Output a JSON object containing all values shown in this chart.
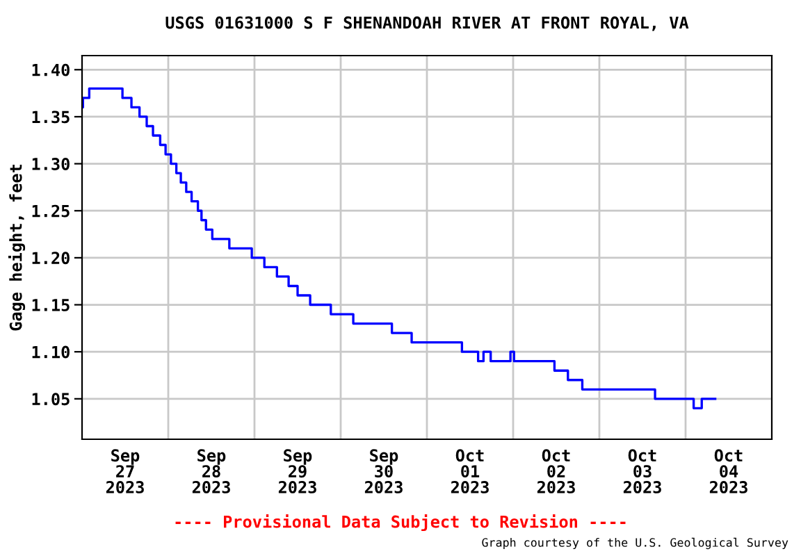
{
  "chart_data": {
    "type": "step",
    "title": "USGS 01631000 S F SHENANDOAH RIVER AT FRONT ROYAL, VA",
    "ylabel": "Gage height, feet",
    "x": [
      "2023-09-27T00:00",
      "2023-09-27T00:15",
      "2023-09-27T02:00",
      "2023-09-27T11:15",
      "2023-09-27T13:45",
      "2023-09-27T16:00",
      "2023-09-27T18:00",
      "2023-09-27T19:45",
      "2023-09-27T21:45",
      "2023-09-27T23:15",
      "2023-09-28T00:45",
      "2023-09-28T02:15",
      "2023-09-28T03:30",
      "2023-09-28T05:00",
      "2023-09-28T06:30",
      "2023-09-28T08:15",
      "2023-09-28T09:15",
      "2023-09-28T10:30",
      "2023-09-28T12:15",
      "2023-09-28T17:00",
      "2023-09-28T23:15",
      "2023-09-29T02:45",
      "2023-09-29T06:15",
      "2023-09-29T09:30",
      "2023-09-29T12:00",
      "2023-09-29T15:30",
      "2023-09-29T21:15",
      "2023-09-30T03:30",
      "2023-09-30T14:15",
      "2023-09-30T19:45",
      "2023-10-01T09:45",
      "2023-10-01T14:15",
      "2023-10-01T15:45",
      "2023-10-01T17:45",
      "2023-10-01T23:15",
      "2023-10-02T00:15",
      "2023-10-02T11:30",
      "2023-10-02T15:15",
      "2023-10-02T19:15",
      "2023-10-03T15:30",
      "2023-10-04T02:15",
      "2023-10-04T04:30",
      "2023-10-04T08:15"
    ],
    "series": [
      {
        "color": "#0000ff",
        "values": [
          1.36,
          1.37,
          1.38,
          1.37,
          1.36,
          1.35,
          1.34,
          1.33,
          1.32,
          1.31,
          1.3,
          1.29,
          1.28,
          1.27,
          1.26,
          1.25,
          1.24,
          1.23,
          1.22,
          1.21,
          1.2,
          1.19,
          1.18,
          1.17,
          1.16,
          1.15,
          1.14,
          1.13,
          1.12,
          1.11,
          1.1,
          1.09,
          1.1,
          1.09,
          1.1,
          1.09,
          1.08,
          1.07,
          1.06,
          1.05,
          1.04,
          1.05,
          1.05
        ]
      }
    ],
    "xlim": [
      "2023-09-27T00:00",
      "2023-10-05T00:00"
    ],
    "xticks": [
      {
        "value": "2023-09-27T12:00",
        "label": "Sep\n27\n2023"
      },
      {
        "value": "2023-09-28T00:00",
        "label": null
      },
      {
        "value": "2023-09-28T12:00",
        "label": "Sep\n28\n2023"
      },
      {
        "value": "2023-09-29T00:00",
        "label": null
      },
      {
        "value": "2023-09-29T12:00",
        "label": "Sep\n29\n2023"
      },
      {
        "value": "2023-09-30T00:00",
        "label": null
      },
      {
        "value": "2023-09-30T12:00",
        "label": "Sep\n30\n2023"
      },
      {
        "value": "2023-10-01T00:00",
        "label": null
      },
      {
        "value": "2023-10-01T12:00",
        "label": "Oct\n01\n2023"
      },
      {
        "value": "2023-10-02T00:00",
        "label": null
      },
      {
        "value": "2023-10-02T12:00",
        "label": "Oct\n02\n2023"
      },
      {
        "value": "2023-10-03T00:00",
        "label": null
      },
      {
        "value": "2023-10-03T12:00",
        "label": "Oct\n03\n2023"
      },
      {
        "value": "2023-10-04T00:00",
        "label": null
      },
      {
        "value": "2023-10-04T12:00",
        "label": "Oct\n04\n2023"
      }
    ],
    "ylim": [
      1.007,
      1.415
    ],
    "yticks": [
      {
        "value": 1.05,
        "label": "1.05"
      },
      {
        "value": 1.1,
        "label": "1.10"
      },
      {
        "value": 1.15,
        "label": "1.15"
      },
      {
        "value": 1.2,
        "label": "1.20"
      },
      {
        "value": 1.25,
        "label": "1.25"
      },
      {
        "value": 1.3,
        "label": "1.30"
      },
      {
        "value": 1.35,
        "label": "1.35"
      },
      {
        "value": 1.4,
        "label": "1.40"
      }
    ],
    "grid": true,
    "line_style": "solid",
    "marker": "none",
    "annotations": [
      "---- Provisional Data Subject to Revision ----",
      "Graph courtesy of the U.S. Geological Survey"
    ]
  }
}
